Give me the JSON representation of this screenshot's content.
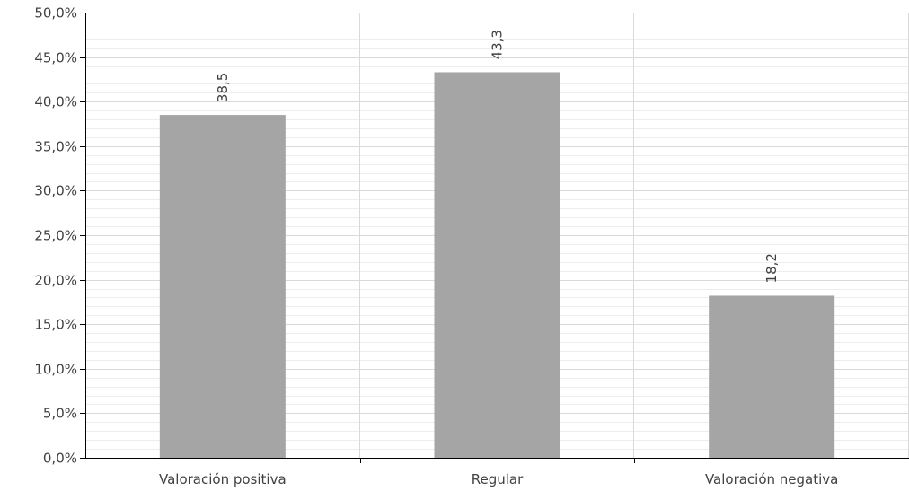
{
  "chart_data": {
    "type": "bar",
    "categories": [
      "Valoración positiva",
      "Regular",
      "Valoración negativa"
    ],
    "values": [
      38.5,
      43.3,
      18.2
    ],
    "data_labels": [
      "38,5",
      "43,3",
      "18,2"
    ],
    "ylim": [
      0,
      50
    ],
    "y_ticks": [
      0,
      5,
      10,
      15,
      20,
      25,
      30,
      35,
      40,
      45,
      50
    ],
    "y_tick_labels": [
      "0,0%",
      "5,0%",
      "10,0%",
      "15,0%",
      "20,0%",
      "25,0%",
      "30,0%",
      "35,0%",
      "40,0%",
      "45,0%",
      "50,0%"
    ],
    "minor_grid_step": 1,
    "grid": true,
    "legend": "none",
    "bar_color": "#A5A5A5",
    "grid_color": "#D9D9D9",
    "minor_grid_color": "#EDEDED",
    "axis_color": "#000000"
  }
}
